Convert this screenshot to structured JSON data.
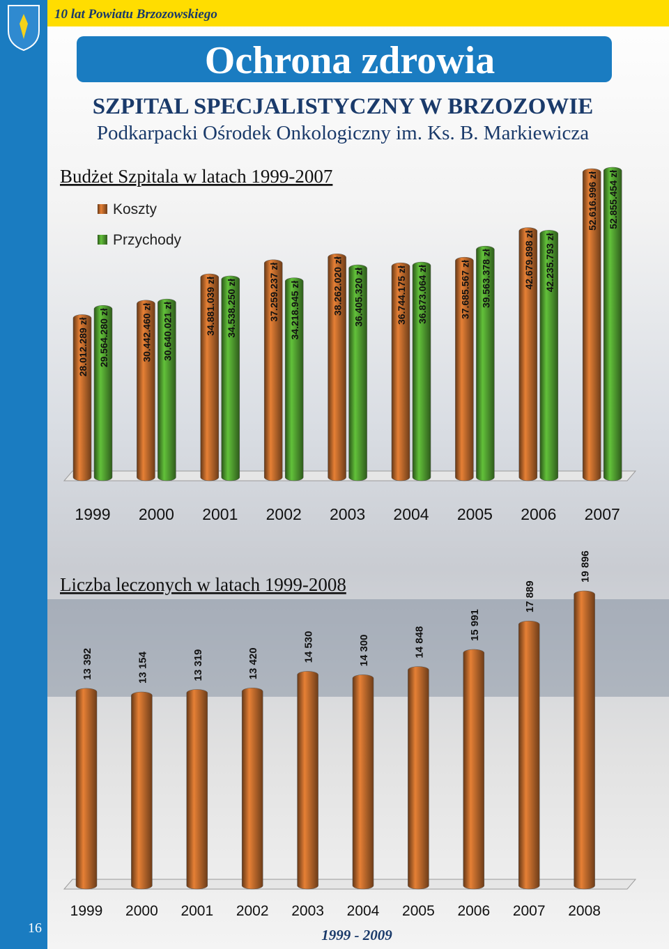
{
  "header": {
    "series_title": "10 lat Powiatu Brzozowskiego",
    "section_title": "Ochrona zdrowia",
    "hospital": "SZPITAL SPECJALISTYCZNY W BRZOZOWIE",
    "subtitle": "Podkarpacki Ośrodek Onkologiczny im. Ks. B. Markiewicza"
  },
  "chart_data": [
    {
      "type": "bar",
      "title": "Budżet Szpitala w latach 1999-2007",
      "categories": [
        "1999",
        "2000",
        "2001",
        "2002",
        "2003",
        "2004",
        "2005",
        "2006",
        "2007"
      ],
      "series": [
        {
          "name": "Koszty",
          "color": "#b8662a",
          "values": [
            28012289,
            30442460,
            34881039,
            37259237,
            38262020,
            36744175,
            37685567,
            42679898,
            52616996
          ],
          "value_labels": [
            "28.012.289 zł",
            "30.442.460 zł",
            "34.881.039 zł",
            "37.259.237 zł",
            "38.262.020 zł",
            "36.744.175 zł",
            "37.685.567 zł",
            "42.679.898 zł",
            "52.616.996 zł"
          ]
        },
        {
          "name": "Przychody",
          "color": "#4e9a2e",
          "values": [
            29564280,
            30640021,
            34538250,
            34218945,
            36405320,
            36873064,
            39563378,
            42235793,
            52855454
          ],
          "value_labels": [
            "29.564.280 zł",
            "30.640.021 zł",
            "34.538.250 zł",
            "34.218.945 zł",
            "36.405.320 zł",
            "36.873.064 zł",
            "39.563.378 zł",
            "42.235.793 zł",
            "52.855.454 zł"
          ]
        }
      ]
    },
    {
      "type": "bar",
      "title": "Liczba leczonych w latach 1999-2008",
      "categories": [
        "1999",
        "2000",
        "2001",
        "2002",
        "2003",
        "2004",
        "2005",
        "2006",
        "2007",
        "2008"
      ],
      "color": "#b8662a",
      "values": [
        13392,
        13154,
        13319,
        13420,
        14530,
        14300,
        14848,
        15991,
        17889,
        19896
      ],
      "value_labels": [
        "13 392",
        "13 154",
        "13 319",
        "13 420",
        "14 530",
        "14 300",
        "14 848",
        "15 991",
        "17 889",
        "19 896"
      ]
    }
  ],
  "footer": {
    "page_number": "16",
    "years": "1999 - 2009"
  }
}
